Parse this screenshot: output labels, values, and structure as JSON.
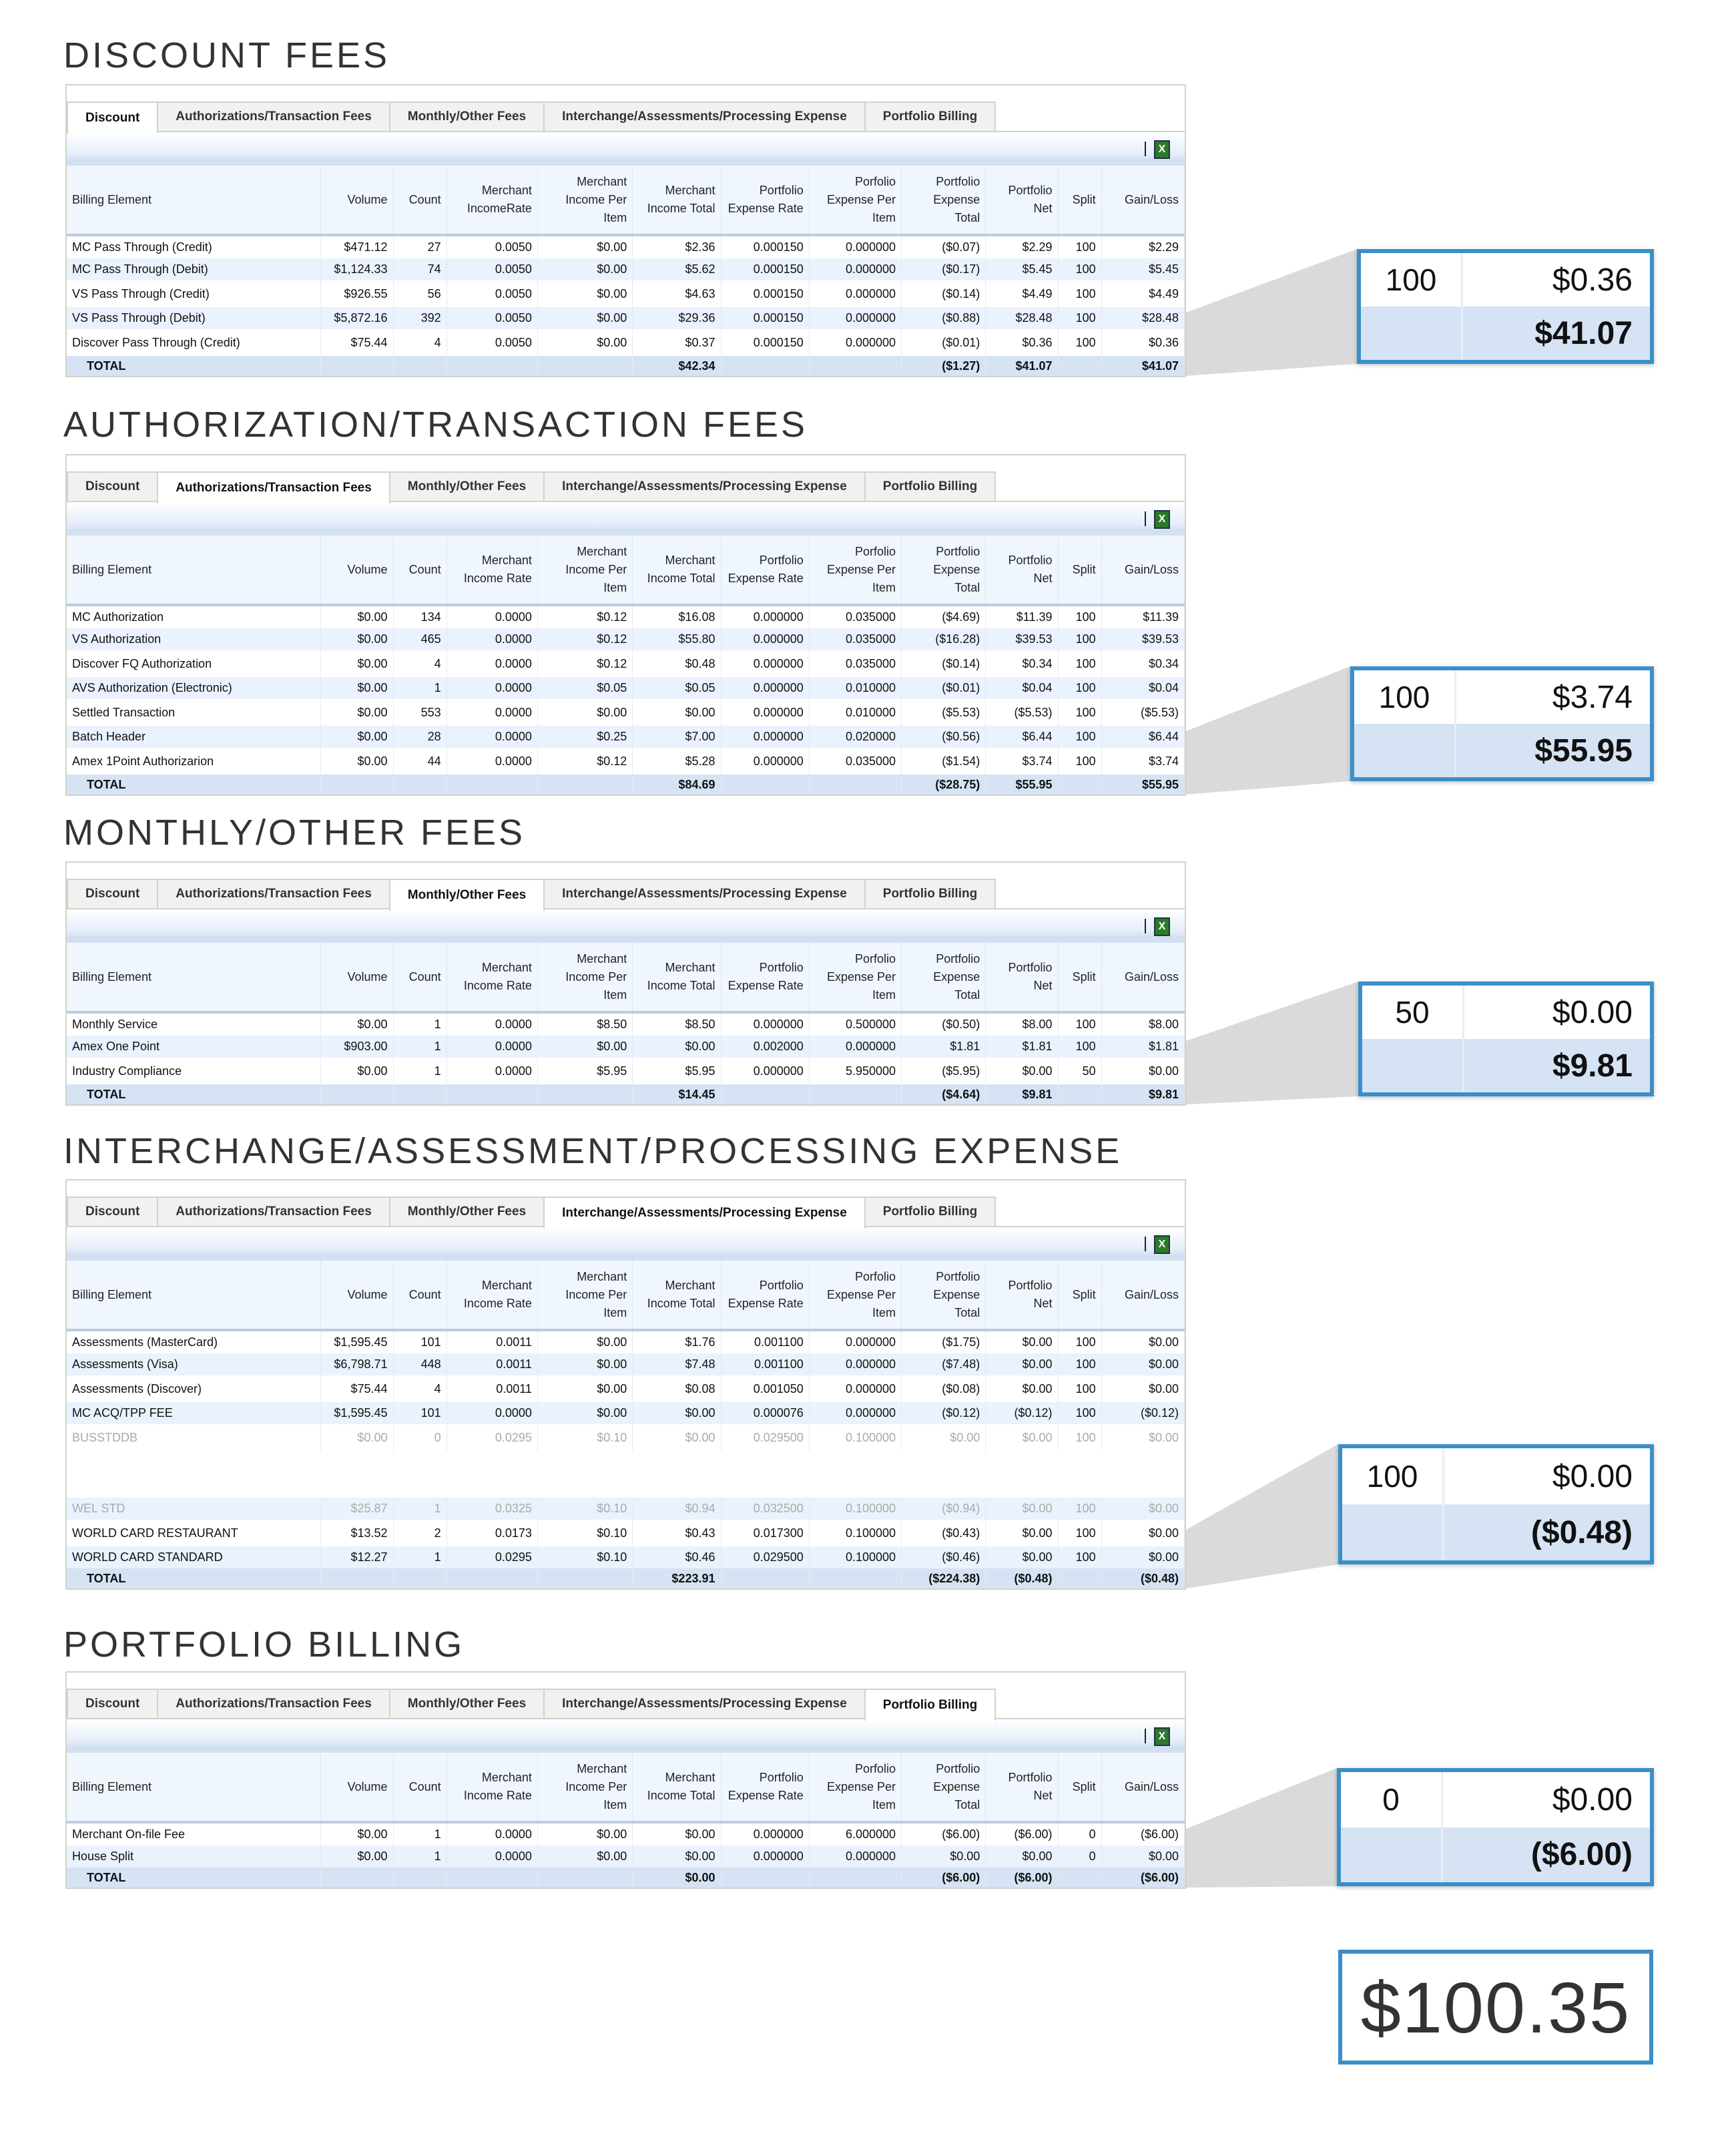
{
  "tabs": [
    "Discount",
    "Authorizations/Transaction Fees",
    "Monthly/Other Fees",
    "Interchange/Assessments/Processing Expense",
    "Portfolio Billing"
  ],
  "export_icon": "excel-export-icon",
  "accent_color": "#3a8fc8",
  "grand_total": "$100.35",
  "sections": [
    {
      "title": "DISCOUNT FEES",
      "active_tab": 0,
      "headers": [
        "Billing Element",
        "Volume",
        "Count",
        "Merchant IncomeRate",
        "Merchant Income Per Item",
        "Merchant Income Total",
        "Portfolio Expense Rate",
        "Porfolio Expense Per Item",
        "Portfolio Expense Total",
        "Portfolio Net",
        "Split",
        "Gain/Loss"
      ],
      "rows": [
        {
          "cells": [
            "MC Pass Through (Credit)",
            "$471.12",
            "27",
            "0.0050",
            "$0.00",
            "$2.36",
            "0.000150",
            "0.000000",
            "($0.07)",
            "$2.29",
            "100",
            "$2.29"
          ]
        },
        {
          "cells": [
            "MC Pass Through (Debit)",
            "$1,124.33",
            "74",
            "0.0050",
            "$0.00",
            "$5.62",
            "0.000150",
            "0.000000",
            "($0.17)",
            "$5.45",
            "100",
            "$5.45"
          ]
        },
        {
          "cells": [
            "VS Pass Through (Credit)",
            "$926.55",
            "56",
            "0.0050",
            "$0.00",
            "$4.63",
            "0.000150",
            "0.000000",
            "($0.14)",
            "$4.49",
            "100",
            "$4.49"
          ]
        },
        {
          "cells": [
            "VS Pass Through (Debit)",
            "$5,872.16",
            "392",
            "0.0050",
            "$0.00",
            "$29.36",
            "0.000150",
            "0.000000",
            "($0.88)",
            "$28.48",
            "100",
            "$28.48"
          ]
        },
        {
          "cells": [
            "Discover Pass Through (Credit)",
            "$75.44",
            "4",
            "0.0050",
            "$0.00",
            "$0.37",
            "0.000150",
            "0.000000",
            "($0.01)",
            "$0.36",
            "100",
            "$0.36"
          ]
        }
      ],
      "total": [
        "TOTAL",
        "",
        "",
        "",
        "",
        "$42.34",
        "",
        "",
        "($1.27)",
        "$41.07",
        "",
        "$41.07"
      ],
      "callout": {
        "split": "100",
        "gain": "$0.36",
        "total": "$41.07"
      }
    },
    {
      "title": "AUTHORIZATION/TRANSACTION FEES",
      "active_tab": 1,
      "headers": [
        "Billing Element",
        "Volume",
        "Count",
        "Merchant Income Rate",
        "Merchant Income Per Item",
        "Merchant Income Total",
        "Portfolio Expense Rate",
        "Porfolio Expense Per Item",
        "Portfolio Expense Total",
        "Portfolio Net",
        "Split",
        "Gain/Loss"
      ],
      "rows": [
        {
          "cells": [
            "MC Authorization",
            "$0.00",
            "134",
            "0.0000",
            "$0.12",
            "$16.08",
            "0.000000",
            "0.035000",
            "($4.69)",
            "$11.39",
            "100",
            "$11.39"
          ]
        },
        {
          "cells": [
            "VS Authorization",
            "$0.00",
            "465",
            "0.0000",
            "$0.12",
            "$55.80",
            "0.000000",
            "0.035000",
            "($16.28)",
            "$39.53",
            "100",
            "$39.53"
          ]
        },
        {
          "cells": [
            "Discover FQ Authorization",
            "$0.00",
            "4",
            "0.0000",
            "$0.12",
            "$0.48",
            "0.000000",
            "0.035000",
            "($0.14)",
            "$0.34",
            "100",
            "$0.34"
          ]
        },
        {
          "cells": [
            "AVS Authorization (Electronic)",
            "$0.00",
            "1",
            "0.0000",
            "$0.05",
            "$0.05",
            "0.000000",
            "0.010000",
            "($0.01)",
            "$0.04",
            "100",
            "$0.04"
          ]
        },
        {
          "cells": [
            "Settled Transaction",
            "$0.00",
            "553",
            "0.0000",
            "$0.00",
            "$0.00",
            "0.000000",
            "0.010000",
            "($5.53)",
            "($5.53)",
            "100",
            "($5.53)"
          ]
        },
        {
          "cells": [
            "Batch Header",
            "$0.00",
            "28",
            "0.0000",
            "$0.25",
            "$7.00",
            "0.000000",
            "0.020000",
            "($0.56)",
            "$6.44",
            "100",
            "$6.44"
          ]
        },
        {
          "cells": [
            "Amex 1Point Authorizarion",
            "$0.00",
            "44",
            "0.0000",
            "$0.12",
            "$5.28",
            "0.000000",
            "0.035000",
            "($1.54)",
            "$3.74",
            "100",
            "$3.74"
          ]
        }
      ],
      "total": [
        "TOTAL",
        "",
        "",
        "",
        "",
        "$84.69",
        "",
        "",
        "($28.75)",
        "$55.95",
        "",
        "$55.95"
      ],
      "callout": {
        "split": "100",
        "gain": "$3.74",
        "total": "$55.95"
      }
    },
    {
      "title": "MONTHLY/OTHER FEES",
      "active_tab": 2,
      "headers": [
        "Billing Element",
        "Volume",
        "Count",
        "Merchant Income Rate",
        "Merchant Income Per Item",
        "Merchant Income Total",
        "Portfolio Expense Rate",
        "Porfolio Expense Per Item",
        "Portfolio Expense Total",
        "Portfolio Net",
        "Split",
        "Gain/Loss"
      ],
      "rows": [
        {
          "cells": [
            "Monthly Service",
            "$0.00",
            "1",
            "0.0000",
            "$8.50",
            "$8.50",
            "0.000000",
            "0.500000",
            "($0.50)",
            "$8.00",
            "100",
            "$8.00"
          ]
        },
        {
          "cells": [
            "Amex One Point",
            "$903.00",
            "1",
            "0.0000",
            "$0.00",
            "$0.00",
            "0.002000",
            "0.000000",
            "$1.81",
            "$1.81",
            "100",
            "$1.81"
          ]
        },
        {
          "cells": [
            "Industry Compliance",
            "$0.00",
            "1",
            "0.0000",
            "$5.95",
            "$5.95",
            "0.000000",
            "5.950000",
            "($5.95)",
            "$0.00",
            "50",
            "$0.00"
          ]
        }
      ],
      "total": [
        "TOTAL",
        "",
        "",
        "",
        "",
        "$14.45",
        "",
        "",
        "($4.64)",
        "$9.81",
        "",
        "$9.81"
      ],
      "callout": {
        "split": "50",
        "gain": "$0.00",
        "total": "$9.81"
      }
    },
    {
      "title": "INTERCHANGE/ASSESSMENT/PROCESSING EXPENSE",
      "active_tab": 3,
      "headers": [
        "Billing Element",
        "Volume",
        "Count",
        "Merchant Income Rate",
        "Merchant Income Per Item",
        "Merchant Income Total",
        "Portfolio Expense Rate",
        "Porfolio Expense Per Item",
        "Portfolio Expense Total",
        "Portfolio Net",
        "Split",
        "Gain/Loss"
      ],
      "rows": [
        {
          "cells": [
            "Assessments (MasterCard)",
            "$1,595.45",
            "101",
            "0.0011",
            "$0.00",
            "$1.76",
            "0.001100",
            "0.000000",
            "($1.75)",
            "$0.00",
            "100",
            "$0.00"
          ]
        },
        {
          "cells": [
            "Assessments (Visa)",
            "$6,798.71",
            "448",
            "0.0011",
            "$0.00",
            "$7.48",
            "0.001100",
            "0.000000",
            "($7.48)",
            "$0.00",
            "100",
            "$0.00"
          ]
        },
        {
          "cells": [
            "Assessments (Discover)",
            "$75.44",
            "4",
            "0.0011",
            "$0.00",
            "$0.08",
            "0.001050",
            "0.000000",
            "($0.08)",
            "$0.00",
            "100",
            "$0.00"
          ]
        },
        {
          "cells": [
            "MC ACQ/TPP FEE",
            "$1,595.45",
            "101",
            "0.0000",
            "$0.00",
            "$0.00",
            "0.000076",
            "0.000000",
            "($0.12)",
            "($0.12)",
            "100",
            "($0.12)"
          ]
        },
        {
          "cells": [
            "BUSSTDDB",
            "$0.00",
            "0",
            "0.0295",
            "$0.10",
            "$0.00",
            "0.029500",
            "0.100000",
            "$0.00",
            "$0.00",
            "100",
            "$0.00"
          ],
          "faded": true,
          "gap_after": true
        },
        {
          "cells": [
            "WEL STD",
            "$25.87",
            "1",
            "0.0325",
            "$0.10",
            "$0.94",
            "0.032500",
            "0.100000",
            "($0.94)",
            "$0.00",
            "100",
            "$0.00"
          ],
          "faded": true
        },
        {
          "cells": [
            "WORLD CARD RESTAURANT",
            "$13.52",
            "2",
            "0.0173",
            "$0.10",
            "$0.43",
            "0.017300",
            "0.100000",
            "($0.43)",
            "$0.00",
            "100",
            "$0.00"
          ]
        },
        {
          "cells": [
            "WORLD CARD STANDARD",
            "$12.27",
            "1",
            "0.0295",
            "$0.10",
            "$0.46",
            "0.029500",
            "0.100000",
            "($0.46)",
            "$0.00",
            "100",
            "$0.00"
          ]
        }
      ],
      "total": [
        "TOTAL",
        "",
        "",
        "",
        "",
        "$223.91",
        "",
        "",
        "($224.38)",
        "($0.48)",
        "",
        "($0.48)"
      ],
      "callout": {
        "split": "100",
        "gain": "$0.00",
        "total": "($0.48)"
      }
    },
    {
      "title": "PORTFOLIO BILLING",
      "active_tab": 4,
      "headers": [
        "Billing Element",
        "Volume",
        "Count",
        "Merchant Income Rate",
        "Merchant Income Per Item",
        "Merchant Income Total",
        "Portfolio Expense Rate",
        "Porfolio Expense Per Item",
        "Portfolio Expense Total",
        "Portfolio Net",
        "Split",
        "Gain/Loss"
      ],
      "rows": [
        {
          "cells": [
            "Merchant On-file Fee",
            "$0.00",
            "1",
            "0.0000",
            "$0.00",
            "$0.00",
            "0.000000",
            "6.000000",
            "($6.00)",
            "($6.00)",
            "0",
            "($6.00)"
          ]
        },
        {
          "cells": [
            "House Split",
            "$0.00",
            "1",
            "0.0000",
            "$0.00",
            "$0.00",
            "0.000000",
            "0.000000",
            "$0.00",
            "$0.00",
            "0",
            "$0.00"
          ]
        }
      ],
      "total": [
        "TOTAL",
        "",
        "",
        "",
        "",
        "$0.00",
        "",
        "",
        "($6.00)",
        "($6.00)",
        "",
        "($6.00)"
      ],
      "callout": {
        "split": "0",
        "gain": "$0.00",
        "total": "($6.00)"
      }
    }
  ]
}
